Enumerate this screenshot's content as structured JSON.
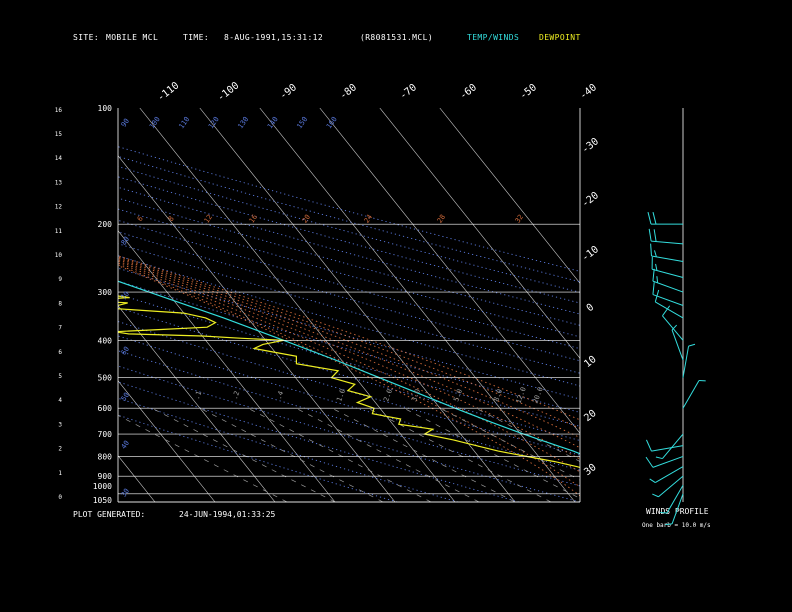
{
  "header": {
    "site_label": "SITE:",
    "site": "MOBILE MCL",
    "time_label": "TIME:",
    "time": "8-AUG-1991,15:31:12",
    "file": "(R8081531.MCL)",
    "legend_temp": "TEMP/WINDS",
    "legend_dew": "DEWPOINT"
  },
  "footer": {
    "generated_label": "PLOT GENERATED:",
    "generated": "24-JUN-1994,01:33:25",
    "winds_title": "WINDS PROFILE",
    "barb_note": "One barb = 10.0 m/s"
  },
  "colors": {
    "temp": "#33dddd",
    "dew": "#eeee22",
    "isotherm": "#c8c8c8",
    "dry_adiabat": "#5a7adf",
    "moist_adiabat": "#d06a3a",
    "mixing_ratio": "#9a9a9a"
  },
  "chart_data": {
    "type": "line",
    "subtype": "skew-T log-P sounding",
    "pressure_levels": [
      100,
      200,
      300,
      400,
      500,
      600,
      700,
      800,
      900,
      1000,
      1050
    ],
    "height_ticks_km": [
      0,
      1,
      2,
      3,
      4,
      5,
      6,
      7,
      8,
      9,
      10,
      11,
      12,
      13,
      14,
      15,
      16
    ],
    "isotherm_labels_top": [
      "-110",
      "-100",
      "-90",
      "-80",
      "-70",
      "-60",
      "-50",
      "-40"
    ],
    "isotherm_labels_right": [
      "-30",
      "-20",
      "-10",
      "0",
      "10",
      "20",
      "30"
    ],
    "dry_adiabat_labels": [
      "30",
      "40",
      "50",
      "60",
      "70",
      "80",
      "90",
      "100",
      "110",
      "120",
      "130",
      "140",
      "150",
      "160"
    ],
    "moist_adiabat_labels": [
      "6",
      "8",
      "12",
      "16",
      "20",
      "24",
      "28",
      "32"
    ],
    "mixing_ratio_labels": [
      ".1",
      ".2",
      ".4",
      "1.0",
      "2.0",
      "3.0",
      "5.0",
      "8.0",
      "12.0",
      "20.0"
    ],
    "series": [
      {
        "name": "TEMP/WINDS",
        "points": [
          {
            "p": 1000,
            "t": 31
          },
          {
            "p": 975,
            "t": 28
          },
          {
            "p": 950,
            "t": 26
          },
          {
            "p": 925,
            "t": 24.5
          },
          {
            "p": 900,
            "t": 23
          },
          {
            "p": 875,
            "t": 22
          },
          {
            "p": 850,
            "t": 20.5
          },
          {
            "p": 825,
            "t": 19.5
          },
          {
            "p": 800,
            "t": 18
          },
          {
            "p": 775,
            "t": 16.5
          },
          {
            "p": 750,
            "t": 14.5
          },
          {
            "p": 725,
            "t": 12.5
          },
          {
            "p": 700,
            "t": 10.5
          },
          {
            "p": 650,
            "t": 6.5
          },
          {
            "p": 600,
            "t": 2.5
          },
          {
            "p": 550,
            "t": -1.5
          },
          {
            "p": 500,
            "t": -6
          },
          {
            "p": 450,
            "t": -11
          },
          {
            "p": 400,
            "t": -17
          },
          {
            "p": 350,
            "t": -24
          },
          {
            "p": 300,
            "t": -33
          },
          {
            "p": 275,
            "t": -38
          },
          {
            "p": 250,
            "t": -43
          },
          {
            "p": 225,
            "t": -49
          },
          {
            "p": 200,
            "t": -55
          }
        ]
      },
      {
        "name": "DEWPOINT",
        "points": [
          {
            "p": 1000,
            "t": 25
          },
          {
            "p": 975,
            "t": 24
          },
          {
            "p": 950,
            "t": 22.5
          },
          {
            "p": 925,
            "t": 21
          },
          {
            "p": 900,
            "t": 19
          },
          {
            "p": 875,
            "t": 17.5
          },
          {
            "p": 850,
            "t": 15
          },
          {
            "p": 825,
            "t": 12
          },
          {
            "p": 800,
            "t": 8
          },
          {
            "p": 775,
            "t": 4
          },
          {
            "p": 750,
            "t": 1
          },
          {
            "p": 725,
            "t": -2
          },
          {
            "p": 700,
            "t": -6
          },
          {
            "p": 680,
            "t": -4
          },
          {
            "p": 660,
            "t": -9
          },
          {
            "p": 640,
            "t": -8
          },
          {
            "p": 620,
            "t": -12
          },
          {
            "p": 600,
            "t": -11
          },
          {
            "p": 580,
            "t": -13
          },
          {
            "p": 560,
            "t": -10
          },
          {
            "p": 540,
            "t": -13
          },
          {
            "p": 520,
            "t": -11
          },
          {
            "p": 500,
            "t": -14
          },
          {
            "p": 480,
            "t": -12
          },
          {
            "p": 460,
            "t": -18
          },
          {
            "p": 440,
            "t": -17
          },
          {
            "p": 420,
            "t": -23
          },
          {
            "p": 410,
            "t": -21
          },
          {
            "p": 400,
            "t": -17
          },
          {
            "p": 395,
            "t": -24
          },
          {
            "p": 390,
            "t": -30
          },
          {
            "p": 385,
            "t": -42
          },
          {
            "p": 380,
            "t": -44
          },
          {
            "p": 375,
            "t": -36
          },
          {
            "p": 370,
            "t": -28
          },
          {
            "p": 360,
            "t": -26
          },
          {
            "p": 350,
            "t": -27
          },
          {
            "p": 340,
            "t": -30
          },
          {
            "p": 330,
            "t": -42
          },
          {
            "p": 320,
            "t": -38
          },
          {
            "p": 315,
            "t": -45
          },
          {
            "p": 310,
            "t": -37
          },
          {
            "p": 300,
            "t": -43
          },
          {
            "p": 290,
            "t": -45
          },
          {
            "p": 280,
            "t": -48
          },
          {
            "p": 270,
            "t": -50
          },
          {
            "p": 260,
            "t": -54
          },
          {
            "p": 250,
            "t": -58
          },
          {
            "p": 240,
            "t": -60
          },
          {
            "p": 230,
            "t": -66
          },
          {
            "p": 220,
            "t": -70
          },
          {
            "p": 210,
            "t": -72
          },
          {
            "p": 200,
            "t": -72
          }
        ]
      }
    ],
    "winds": [
      {
        "p": 1000,
        "dir": 200,
        "spd": 4
      },
      {
        "p": 950,
        "dir": 210,
        "spd": 5
      },
      {
        "p": 900,
        "dir": 230,
        "spd": 6
      },
      {
        "p": 850,
        "dir": 240,
        "spd": 7
      },
      {
        "p": 800,
        "dir": 250,
        "spd": 9
      },
      {
        "p": 750,
        "dir": 260,
        "spd": 8
      },
      {
        "p": 700,
        "dir": 220,
        "spd": 5
      },
      {
        "p": 600,
        "dir": 30,
        "spd": 6
      },
      {
        "p": 500,
        "dir": 10,
        "spd": 5
      },
      {
        "p": 450,
        "dir": 340,
        "spd": 7
      },
      {
        "p": 400,
        "dir": 320,
        "spd": 8
      },
      {
        "p": 350,
        "dir": 300,
        "spd": 10
      },
      {
        "p": 325,
        "dir": 290,
        "spd": 12
      },
      {
        "p": 300,
        "dir": 290,
        "spd": 14
      },
      {
        "p": 275,
        "dir": 285,
        "spd": 15
      },
      {
        "p": 250,
        "dir": 280,
        "spd": 16
      },
      {
        "p": 225,
        "dir": 275,
        "spd": 18
      },
      {
        "p": 200,
        "dir": 270,
        "spd": 18
      }
    ]
  }
}
